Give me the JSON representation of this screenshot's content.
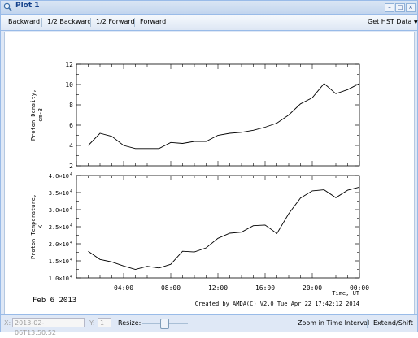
{
  "window": {
    "title": "Plot 1",
    "icon": "magnifier-icon",
    "buttons": [
      "minimize",
      "restore",
      "close"
    ]
  },
  "toolbar": {
    "backward": "Backward",
    "half_backward": "1/2 Backward",
    "half_forward": "1/2 Forward",
    "forward": "Forward",
    "get_data": "Get HST Data",
    "get_data_icon": "dropdown-arrow-icon"
  },
  "plot": {
    "date_label": "Feb  6 2013",
    "xlabel_time": "Time, UT",
    "credit": "Created by AMDA(C) V2.0 Tue Apr 22 17:42:12 2014",
    "x_tick_labels": [
      "04:00",
      "08:00",
      "12:00",
      "16:00",
      "20:00",
      "00:00"
    ]
  },
  "chart_data": [
    {
      "type": "line",
      "ylabel": "Proton Density, cm-3",
      "ylim": [
        2,
        12
      ],
      "y_ticks": [
        "2",
        "4",
        "6",
        "8",
        "10",
        "12"
      ],
      "xlim": [
        "00:00",
        "24:00"
      ],
      "x": [
        "01:00",
        "02:00",
        "03:00",
        "04:00",
        "05:00",
        "06:00",
        "07:00",
        "08:00",
        "09:00",
        "10:00",
        "11:00",
        "12:00",
        "13:00",
        "14:00",
        "15:00",
        "16:00",
        "17:00",
        "18:00",
        "19:00",
        "20:00",
        "21:00",
        "22:00",
        "23:00",
        "24:00"
      ],
      "values": [
        4.0,
        5.2,
        4.9,
        4.0,
        3.7,
        3.7,
        3.7,
        4.3,
        4.2,
        4.4,
        4.4,
        5.0,
        5.2,
        5.3,
        5.5,
        5.8,
        6.2,
        7.0,
        8.1,
        8.7,
        10.1,
        9.1,
        9.5,
        10.1
      ]
    },
    {
      "type": "line",
      "ylabel": "Proton Temperature, K",
      "ylim": [
        10000,
        40000
      ],
      "y_ticks": [
        "1.0x10^4",
        "1.5x10^4",
        "2.0x10^4",
        "2.5x10^4",
        "3.0x10^4",
        "3.5x10^4",
        "4.0x10^4"
      ],
      "xlim": [
        "00:00",
        "24:00"
      ],
      "x": [
        "01:00",
        "02:00",
        "03:00",
        "04:00",
        "05:00",
        "06:00",
        "07:00",
        "08:00",
        "09:00",
        "10:00",
        "11:00",
        "12:00",
        "13:00",
        "14:00",
        "15:00",
        "16:00",
        "17:00",
        "18:00",
        "19:00",
        "20:00",
        "21:00",
        "22:00",
        "23:00",
        "24:00"
      ],
      "values": [
        17800,
        15400,
        14700,
        13500,
        12500,
        13400,
        12900,
        14000,
        17800,
        17600,
        18800,
        21600,
        23100,
        23400,
        25300,
        25500,
        23000,
        28800,
        33400,
        35500,
        35800,
        33500,
        35700,
        36600
      ]
    }
  ],
  "statusbar": {
    "x_label": "X:",
    "x_value": "2013-02-06T13:50:52",
    "y_label": "Y:",
    "y_value": "1",
    "resize_label": "Resize:",
    "zoom": "Zoom in Time Interval",
    "extend": "Extend/Shift"
  }
}
